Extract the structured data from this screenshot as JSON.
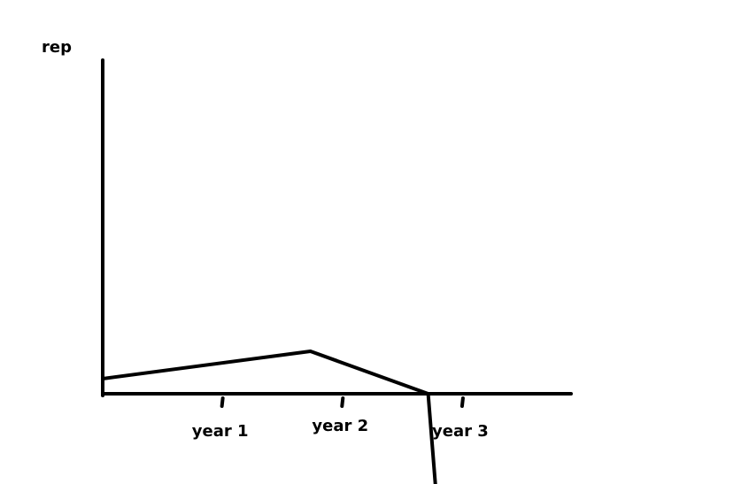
{
  "chart_data": {
    "type": "line",
    "y_label": "rep",
    "x": [
      0,
      1.73,
      2.71,
      2.77
    ],
    "series": [
      {
        "color": "#000000",
        "values": [
          0.45,
          1.27,
          0,
          -2.7
        ]
      }
    ],
    "xlim": [
      0,
      3.9
    ],
    "ylim": [
      0,
      10
    ],
    "xticks": [
      {
        "value": 1,
        "label": "year 1"
      },
      {
        "value": 2,
        "label": "year 2"
      },
      {
        "value": 3,
        "label": "year 3"
      }
    ],
    "grid": false
  }
}
